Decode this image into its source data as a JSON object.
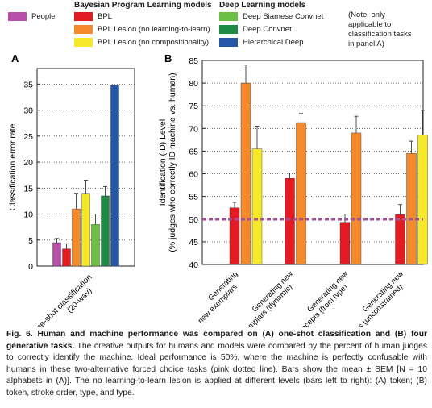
{
  "legend": {
    "people_label": "People",
    "bpl_header": "Bayesian Program Learning models",
    "bpl_items": [
      "BPL",
      "BPL Lesion (no learning-to-learn)",
      "BPL Lesion (no compositionality)"
    ],
    "deep_header": "Deep Learning models",
    "deep_items": [
      "Deep Siamese Convnet",
      "Deep Convnet",
      "Hierarchical Deep"
    ],
    "note": [
      "(Note: only",
      "applicable to",
      "classification tasks",
      "in panel A)"
    ]
  },
  "colors": {
    "people": "#b84fa8",
    "bpl": "#e31b23",
    "bpl_lesion_l2l": "#f58a2c",
    "bpl_lesion_comp": "#f5e92a",
    "deep_siamese": "#6cbf45",
    "deep_convnet": "#1e8a44",
    "hierarchical_deep": "#2557a6",
    "reference_line": "#a0509a"
  },
  "chart_data": [
    {
      "panel": "A",
      "type": "bar",
      "ylabel": "Classification error rate",
      "ylim": [
        0,
        38
      ],
      "yticks": [
        0,
        5,
        10,
        15,
        20,
        25,
        30,
        35
      ],
      "categories": [
        "One-shot classification",
        "(20-way)"
      ],
      "bars": [
        {
          "series": "People",
          "value": 4.5,
          "err": 0.8,
          "color_key": "people"
        },
        {
          "series": "BPL",
          "value": 3.3,
          "err": 1.0,
          "color_key": "bpl"
        },
        {
          "series": "BPL Lesion (no learning-to-learn)",
          "value": 11.0,
          "err": 3.0,
          "color_key": "bpl_lesion_l2l"
        },
        {
          "series": "BPL Lesion (no compositionality)",
          "value": 14.0,
          "err": 2.5,
          "color_key": "bpl_lesion_comp"
        },
        {
          "series": "Deep Siamese Convnet",
          "value": 8.0,
          "err": 2.0,
          "color_key": "deep_siamese"
        },
        {
          "series": "Deep Convnet",
          "value": 13.5,
          "err": 1.8,
          "color_key": "deep_convnet"
        },
        {
          "series": "Hierarchical Deep",
          "value": 34.8,
          "err": 0,
          "color_key": "hierarchical_deep"
        }
      ]
    },
    {
      "panel": "B",
      "type": "bar",
      "ylabel": [
        "Identification (ID) Level",
        "(% judges who correctly ID machine vs. human)"
      ],
      "ylim": [
        40,
        85
      ],
      "yticks": [
        40,
        45,
        50,
        55,
        60,
        65,
        70,
        75,
        80,
        85
      ],
      "reference_line": 50,
      "groups": [
        {
          "label": [
            "Generating",
            "new exemplars"
          ],
          "bars": [
            {
              "series": "BPL",
              "value": 52.5,
              "err": 1.2,
              "color_key": "bpl"
            },
            {
              "series": "BPL Lesion (no learning-to-learn)",
              "value": 80.0,
              "err": 4.0,
              "color_key": "bpl_lesion_l2l"
            },
            {
              "series": "BPL Lesion (no compositionality)",
              "value": 65.5,
              "err": 5.0,
              "color_key": "bpl_lesion_comp"
            }
          ]
        },
        {
          "label": [
            "Generating new",
            "exemplars (dynamic)"
          ],
          "bars": [
            {
              "series": "BPL",
              "value": 59.0,
              "err": 1.2,
              "color_key": "bpl"
            },
            {
              "series": "BPL Lesion (no learning-to-learn)",
              "value": 71.3,
              "err": 2.0,
              "color_key": "bpl_lesion_l2l"
            }
          ]
        },
        {
          "label": [
            "Generating new",
            "concepts (from type)"
          ],
          "bars": [
            {
              "series": "BPL",
              "value": 49.3,
              "err": 1.8,
              "color_key": "bpl"
            },
            {
              "series": "BPL Lesion (no learning-to-learn)",
              "value": 69.0,
              "err": 3.7,
              "color_key": "bpl_lesion_l2l"
            }
          ]
        },
        {
          "label": [
            "Generating new",
            "concepts (unconstrained)"
          ],
          "bars": [
            {
              "series": "BPL",
              "value": 51.0,
              "err": 2.2,
              "color_key": "bpl"
            },
            {
              "series": "BPL Lesion (no learning-to-learn)",
              "value": 64.5,
              "err": 2.7,
              "color_key": "bpl_lesion_l2l"
            },
            {
              "series": "BPL Lesion (no compositionality)",
              "value": 68.5,
              "err": 5.5,
              "color_key": "bpl_lesion_comp"
            }
          ]
        }
      ]
    }
  ],
  "caption": {
    "bold": "Fig. 6. Human and machine performance was compared on (A) one-shot classification and (B) four generative tasks.",
    "text": " The creative outputs for humans and models were compared by the percent of human judges to correctly identify the machine. Ideal performance is 50%, where the machine is perfectly confusable with humans in these two-alternative forced choice tasks (pink dotted line). Bars show the mean ± SEM [N = 10 alphabets in (A)]. The no learning-to-learn lesion is applied at different levels (bars left to right): (A) token; (B) token, stroke order, type, and type."
  }
}
